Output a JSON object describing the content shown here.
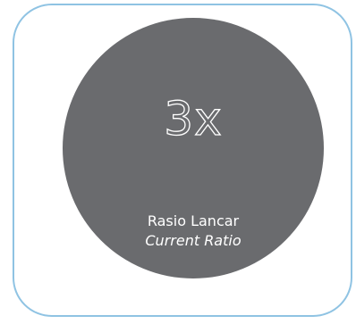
{
  "metric": {
    "value": "3x",
    "label": "Rasio Lancar",
    "label_en": "Current Ratio"
  },
  "colors": {
    "border": "#8fc3e3",
    "circle": "#6a6b6e",
    "text": "#ffffff"
  }
}
